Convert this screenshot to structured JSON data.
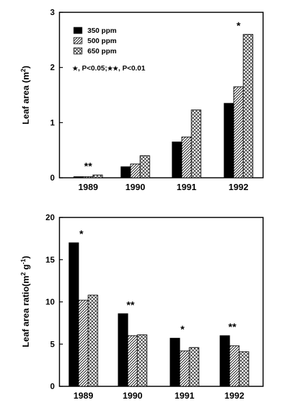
{
  "chart_data": [
    {
      "type": "bar",
      "categories": [
        "1989",
        "1990",
        "1991",
        "1992"
      ],
      "ylabel": "Leaf area (m2)",
      "ylabel_main": "Leaf area (m",
      "ylabel_sup": "2",
      "ylabel_end": ")",
      "ylim": [
        0,
        3
      ],
      "yticks": [
        0,
        1,
        2,
        3
      ],
      "series": [
        {
          "name": "350 ppm",
          "values": [
            0.02,
            0.2,
            0.65,
            1.35
          ],
          "pattern": "solid"
        },
        {
          "name": "500 ppm",
          "values": [
            0.02,
            0.25,
            0.74,
            1.65
          ],
          "pattern": "diagonal"
        },
        {
          "name": "650 ppm",
          "values": [
            0.05,
            0.4,
            1.23,
            2.6
          ],
          "pattern": "crosshatch"
        }
      ],
      "significance": [
        "**",
        "",
        "",
        "*"
      ],
      "legend": {
        "position": "top-left",
        "note_star1": "★",
        "note_text1": ", P<0.05;",
        "note_star2": "★★",
        "note_text2": ", P<0.01"
      }
    },
    {
      "type": "bar",
      "categories": [
        "1989",
        "1990",
        "1991",
        "1992"
      ],
      "ylabel": "Leaf area ratio(m2 g-1)",
      "ylabel_main": "Leaf area ratio(m",
      "ylabel_sup": "2",
      "ylabel_mid": " g",
      "ylabel_sup2": "-1",
      "ylabel_end": ")",
      "ylim": [
        0,
        20
      ],
      "yticks": [
        0,
        5,
        10,
        15,
        20
      ],
      "series": [
        {
          "name": "350 ppm",
          "values": [
            17.0,
            8.6,
            5.7,
            6.0
          ],
          "pattern": "solid"
        },
        {
          "name": "500 ppm",
          "values": [
            10.2,
            6.0,
            4.2,
            4.8
          ],
          "pattern": "diagonal"
        },
        {
          "name": "650 ppm",
          "values": [
            10.8,
            6.1,
            4.6,
            4.1
          ],
          "pattern": "crosshatch"
        }
      ],
      "significance": [
        "*",
        "**",
        "*",
        "**"
      ]
    }
  ]
}
